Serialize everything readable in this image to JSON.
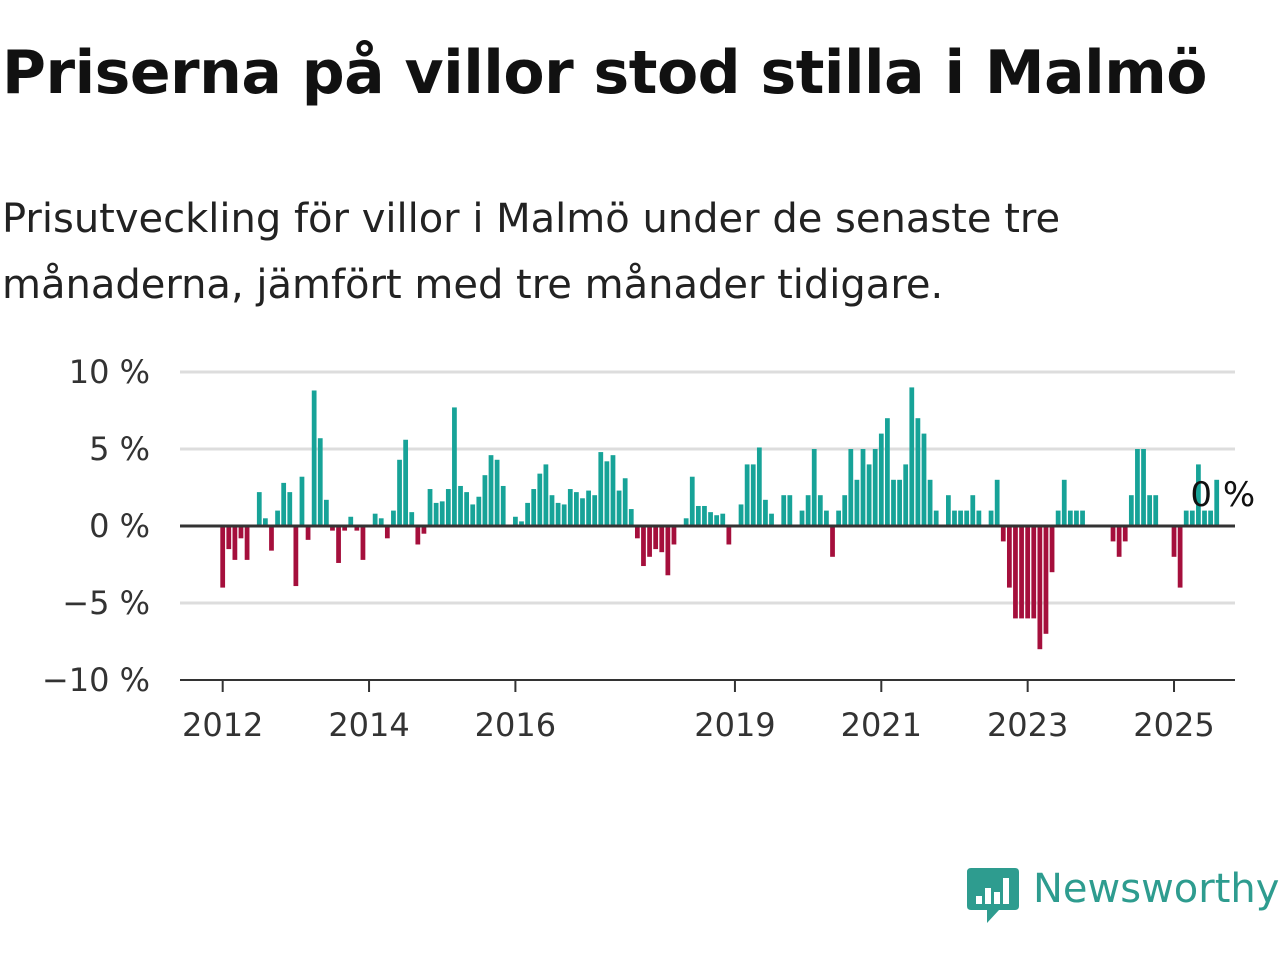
{
  "title": "Priserna på villor stod stilla i Malmö",
  "subtitle": "Prisutveckling för villor i Malmö under de senaste tre månaderna, jämfört med tre månader tidigare.",
  "brand": {
    "name": "Newsworthy",
    "color": "#2e9c8f",
    "icon": "newsworthy-logo-icon"
  },
  "colors": {
    "positive": "#17a398",
    "negative": "#a50f3c",
    "grid": "#dddddd",
    "axis": "#333333"
  },
  "chart_data": {
    "type": "bar",
    "title": "Priserna på villor stod stilla i Malmö",
    "subtitle": "Prisutveckling för villor i Malmö under de senaste tre månaderna, jämfört med tre månader tidigare.",
    "ylabel": "",
    "ylim": [
      -10,
      10
    ],
    "yticks": [
      10,
      5,
      0,
      -5,
      -10
    ],
    "ytick_labels": [
      "10 %",
      "5 %",
      "0 %",
      "−5 %",
      "−10 %"
    ],
    "xlim": [
      "2011-06",
      "2025-11"
    ],
    "xticks": [
      "2012-01",
      "2014-01",
      "2016-01",
      "2019-01",
      "2021-01",
      "2023-01",
      "2025-01"
    ],
    "xtick_labels": [
      "2012",
      "2014",
      "2016",
      "2019",
      "2021",
      "2023",
      "2025"
    ],
    "grid": true,
    "legend": "none",
    "last_value_label": "0 %",
    "start_month": "2012-01",
    "series": [
      {
        "values": [
          -4,
          -1.5,
          -2.2,
          -0.8,
          -2.2,
          null,
          2.2,
          0.5,
          -1.6,
          1,
          2.8,
          2.2,
          -3.9,
          3.2,
          -0.9,
          8.8,
          5.7,
          1.7,
          -0.3,
          -2.4,
          -0.3,
          0.6,
          -0.3,
          -2.2,
          null,
          0.8,
          0.5,
          -0.8,
          1,
          4.3,
          5.6,
          0.9,
          -1.2,
          -0.5,
          2.4,
          1.5,
          1.6,
          2.4,
          7.7,
          2.6,
          2.2,
          1.4,
          1.9,
          3.3,
          4.6,
          4.3,
          2.6,
          null,
          0.6,
          0.3,
          1.5,
          2.4,
          3.4,
          4,
          2,
          1.5,
          1.4,
          2.4,
          2.2,
          1.8,
          2.3,
          2,
          4.8,
          4.2,
          4.6,
          2.3,
          3.1,
          1.1,
          -0.8,
          -2.6,
          -2,
          -1.5,
          -1.7,
          -3.2,
          -1.2,
          null,
          0.5,
          3.2,
          1.3,
          1.3,
          0.9,
          0.7,
          0.8,
          -1.2,
          null,
          1.4,
          4,
          4,
          5.1,
          1.7,
          0.8,
          null,
          2,
          2,
          null,
          1,
          2,
          5,
          2,
          1,
          -2,
          1,
          2,
          5,
          3,
          5,
          4,
          5,
          6,
          7,
          3,
          3,
          4,
          9,
          7,
          6,
          3,
          1,
          null,
          2,
          1,
          1,
          1,
          2,
          1,
          null,
          1,
          3,
          -1,
          -4,
          -6,
          -6,
          -6,
          -6,
          -8,
          -7,
          -3,
          1,
          3,
          1,
          1,
          1,
          null,
          null,
          null,
          null,
          -1,
          -2,
          -1,
          2,
          5,
          5,
          2,
          2,
          null,
          null,
          -2,
          -4,
          1,
          1,
          4,
          1,
          1,
          3,
          0
        ]
      }
    ]
  }
}
